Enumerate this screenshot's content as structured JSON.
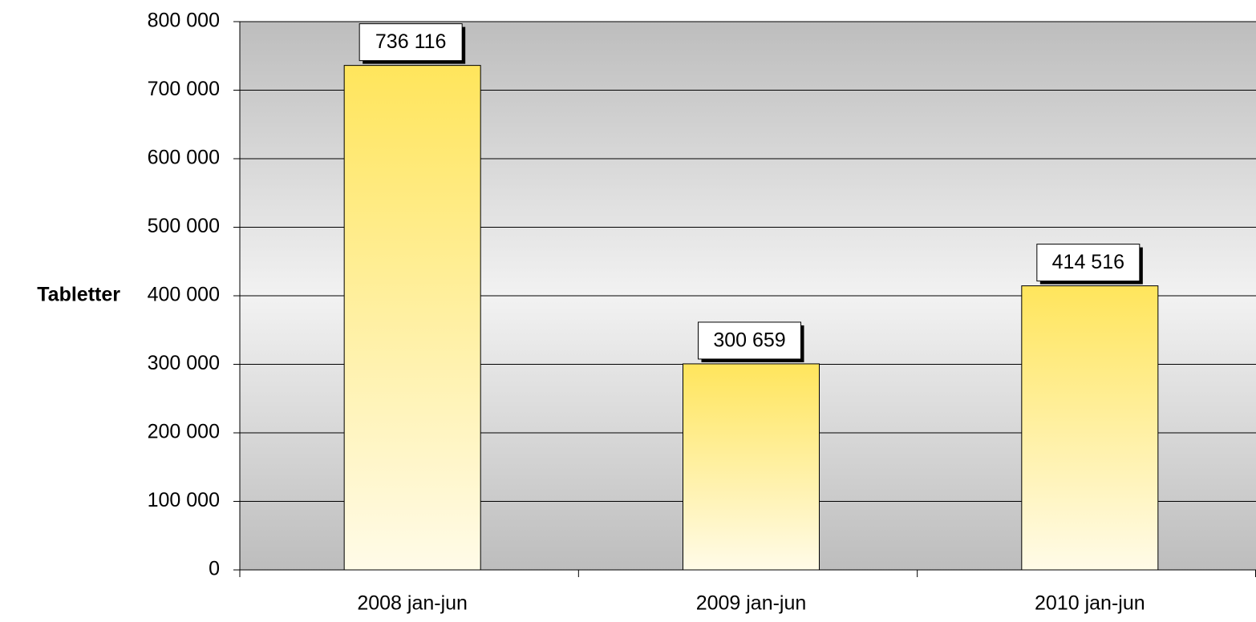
{
  "chart_data": {
    "type": "bar",
    "y_label": "Tabletter",
    "categories": [
      "2008 jan-jun",
      "2009 jan-jun",
      "2010 jan-jun"
    ],
    "values": [
      736116,
      300659,
      414516
    ],
    "value_labels": [
      "736 116",
      "300 659",
      "414 516"
    ],
    "color": "#ffe55c",
    "ylim": [
      0,
      800000
    ],
    "yticks": [
      0,
      {
        "value": 100000,
        "label": "100 000"
      },
      {
        "value": 200000,
        "label": "200 000"
      },
      {
        "value": 300000,
        "label": "300 000"
      },
      {
        "value": 400000,
        "label": "400 000"
      },
      {
        "value": 500000,
        "label": "500 000"
      },
      {
        "value": 600000,
        "label": "600 000"
      },
      {
        "value": 700000,
        "label": "700 000"
      },
      {
        "value": 800000,
        "label": "800 000"
      }
    ],
    "grid": true
  }
}
